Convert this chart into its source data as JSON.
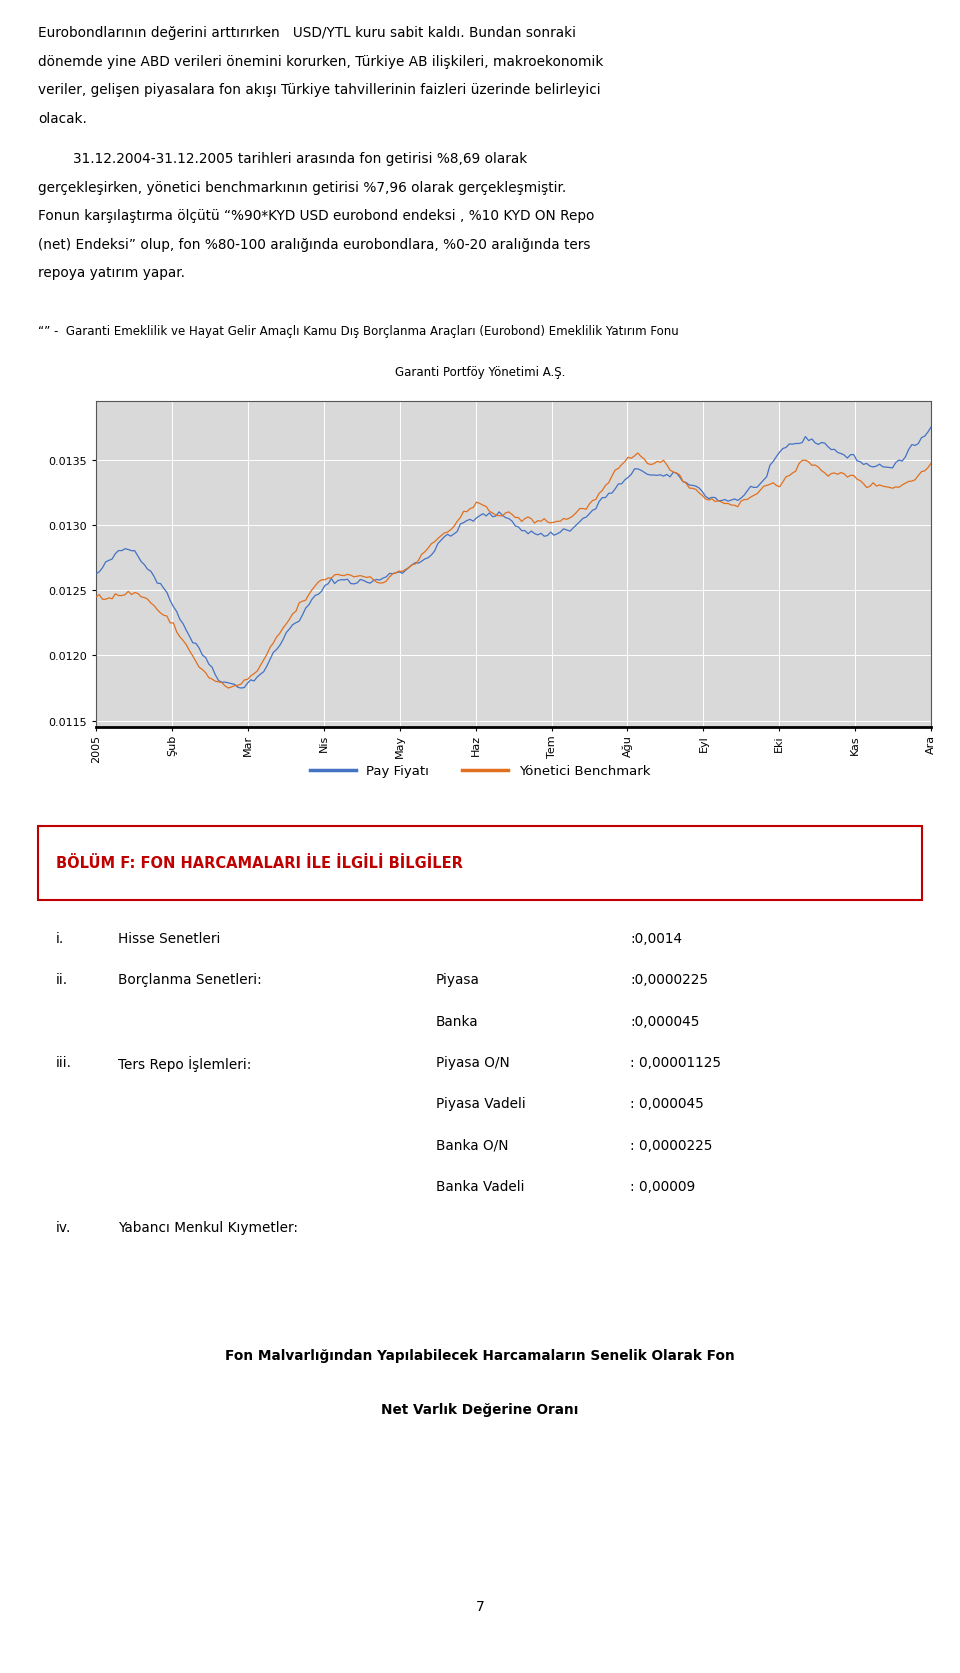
{
  "paragraph1": "Eurobondlarının değerini arttırırken   USD/YTL kuru sabit kaldı. Bundan sonraki dönemde yine ABD verileri önemini korurken, Türkiye AB ilişkileri, makroekonomik veriler, gelişen piyasalara fon akışı Türkiye tahvillerinin faizleri üzerinde belirleyici olacak.",
  "paragraph2_1": "        31.12.2004-31.12.2005 tarihleri arasında fon getirisi %8,69 olarak gerçekleşirken, yönetici benchmarkının getirisi %7,96 olarak gerçekleşmiştir.",
  "paragraph2_2": "Fonun karşılaştırma ölçütü “%90*KYD USD eurobond endeksi , %10 KYD ON Repo (net) Endeksi” olup, fon %80-100 aralığında eurobondlara, %0-20 aralığında ters repoya yatırım yapar.",
  "footnote_line1": "“” -  Garanti Emeklilik ve Hayat Gelir Amaçlı Kamu Dış Borçlanma Araçları (Eurobond) Emeklilik Yatırım Fonu",
  "footnote_line2": "Garanti Portföy Yönetimi A.Ş.",
  "chart_bg": "#d9d9d9",
  "page_bg": "#ffffff",
  "y_min": 0.01145,
  "y_max": 0.01395,
  "y_ticks": [
    0.0115,
    0.012,
    0.0125,
    0.013,
    0.0135
  ],
  "x_labels": [
    "2005",
    "Şub",
    "Mar",
    "Nis",
    "May",
    "Haz",
    "Tem",
    "Ağu",
    "Eyl",
    "Eki",
    "Kas",
    "Ara"
  ],
  "line1_color": "#4472c4",
  "line2_color": "#e07020",
  "legend_label1": "Pay Fiyatı",
  "legend_label2": "Yönetici Benchmark",
  "section_title": "BÖLÜM F: FON HARCAMALARI İLE İLGİLİ BİLGİLER",
  "section_title_color": "#c00000",
  "section_border_color": "#c00000",
  "items": [
    {
      "label": "i.",
      "text": "Hisse Senetleri",
      "col2": "",
      "col3": ":0,0014"
    },
    {
      "label": "ii.",
      "text": "Borçlanma Senetleri:",
      "col2": "Piyasa",
      "col3": ":0,0000225"
    },
    {
      "label": "",
      "text": "",
      "col2": "Banka",
      "col3": ":0,000045"
    },
    {
      "label": "iii.",
      "text": "Ters Repo İşlemleri:",
      "col2": "Piyasa O/N",
      "col3": ": 0,00001125"
    },
    {
      "label": "",
      "text": "",
      "col2": "Piyasa Vadeli",
      "col3": ": 0,000045"
    },
    {
      "label": "",
      "text": "",
      "col2": "Banka O/N",
      "col3": ": 0,0000225"
    },
    {
      "label": "",
      "text": "",
      "col2": "Banka Vadeli",
      "col3": ": 0,00009"
    },
    {
      "label": "iv.",
      "text": "Yabancı Menkul Kıymetler:",
      "col2": "",
      "col3": ""
    }
  ],
  "footer_bold_1": "Fon Malvarlığından Yapılabilecek Harcamaların Senelik Olarak Fon",
  "footer_bold_2": "Net Varlık Değerine Oranı",
  "page_number": "7"
}
